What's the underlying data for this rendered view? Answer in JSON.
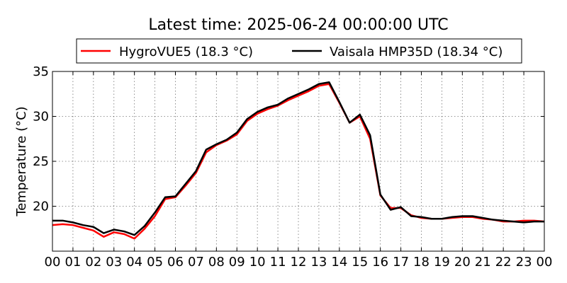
{
  "chart_data": {
    "type": "line",
    "title": "Latest time: 2025-06-24 00:00:00 UTC",
    "xlabel": "",
    "ylabel": "Temperature (°C)",
    "xlim": [
      0,
      24
    ],
    "ylim": [
      15,
      35
    ],
    "grid": true,
    "legend_placement": "top-center",
    "x_tick_labels": [
      "00",
      "01",
      "02",
      "03",
      "04",
      "05",
      "06",
      "07",
      "08",
      "09",
      "10",
      "11",
      "12",
      "13",
      "14",
      "15",
      "16",
      "17",
      "18",
      "19",
      "20",
      "21",
      "22",
      "23",
      "00"
    ],
    "y_ticks": [
      20,
      25,
      30,
      35
    ],
    "x": [
      0,
      0.5,
      1,
      1.5,
      2,
      2.5,
      3,
      3.5,
      4,
      4.5,
      5,
      5.5,
      6,
      6.5,
      7,
      7.5,
      8,
      8.5,
      9,
      9.5,
      10,
      10.5,
      11,
      11.5,
      12,
      12.5,
      13,
      13.5,
      14,
      14.5,
      15,
      15.5,
      16,
      16.5,
      17,
      17.5,
      18,
      18.5,
      19,
      19.5,
      20,
      20.5,
      21,
      21.5,
      22,
      22.5,
      23,
      23.5,
      24
    ],
    "series": [
      {
        "name": "HygroVUE5 (18.3 °C)",
        "color": "#ff0000",
        "values": [
          17.9,
          18.0,
          17.9,
          17.6,
          17.3,
          16.6,
          17.1,
          16.9,
          16.4,
          17.5,
          18.9,
          20.8,
          21.0,
          22.3,
          23.7,
          26.0,
          26.8,
          27.3,
          28.0,
          29.5,
          30.3,
          30.8,
          31.2,
          31.8,
          32.3,
          32.8,
          33.4,
          33.6,
          31.5,
          29.3,
          30.0,
          27.5,
          21.2,
          19.8,
          19.8,
          19.0,
          18.7,
          18.6,
          18.6,
          18.7,
          18.8,
          18.8,
          18.6,
          18.5,
          18.3,
          18.3,
          18.4,
          18.4,
          18.3
        ]
      },
      {
        "name": "Vaisala HMP35D (18.34 °C)",
        "color": "#000000",
        "values": [
          18.4,
          18.4,
          18.2,
          17.9,
          17.7,
          17.0,
          17.4,
          17.2,
          16.8,
          17.8,
          19.3,
          21.0,
          21.1,
          22.5,
          23.9,
          26.3,
          26.9,
          27.4,
          28.2,
          29.7,
          30.5,
          31.0,
          31.3,
          32.0,
          32.5,
          33.0,
          33.6,
          33.8,
          31.6,
          29.3,
          30.2,
          27.9,
          21.3,
          19.6,
          19.9,
          18.9,
          18.8,
          18.6,
          18.6,
          18.8,
          18.9,
          18.9,
          18.7,
          18.5,
          18.4,
          18.3,
          18.2,
          18.3,
          18.3
        ]
      }
    ]
  }
}
